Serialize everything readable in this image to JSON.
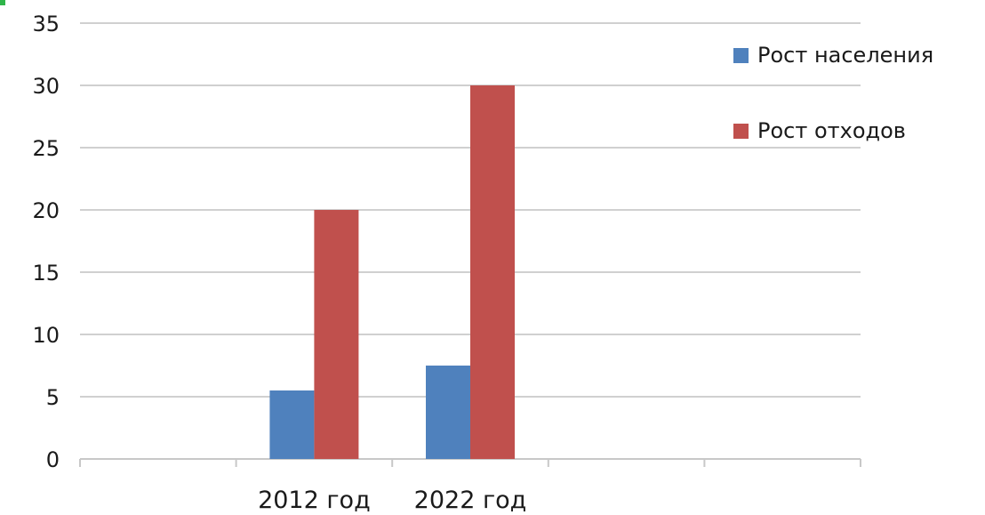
{
  "chart_data": {
    "type": "bar",
    "title": "",
    "xlabel": "",
    "ylabel": "",
    "categories": [
      "",
      "2012 год",
      "2022 год",
      "",
      ""
    ],
    "series": [
      {
        "name": "Рост населения",
        "values": [
          null,
          5.5,
          7.5,
          null,
          null
        ],
        "color": "#4f81bd"
      },
      {
        "name": "Рост отходов",
        "values": [
          null,
          20,
          30,
          null,
          null
        ],
        "color": "#c0504d"
      }
    ],
    "ylim": [
      0,
      35
    ],
    "yticks": [
      0,
      5,
      10,
      15,
      20,
      25,
      30,
      35
    ],
    "grid": true,
    "legend_position": "right"
  }
}
